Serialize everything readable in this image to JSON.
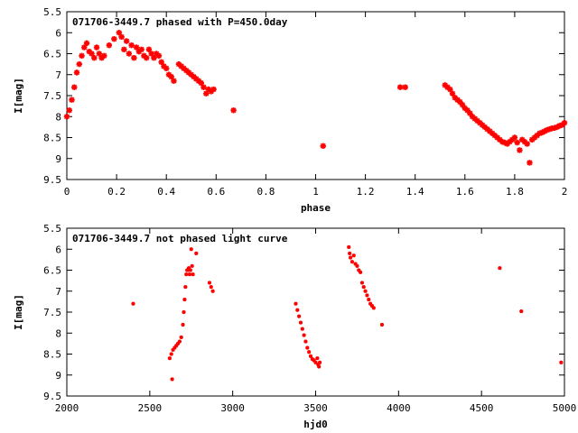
{
  "chart_data": [
    {
      "type": "scatter",
      "title": "071706-3449.7 phased with P=450.0day",
      "xlabel": "phase",
      "ylabel": "I[mag]",
      "xlim": [
        0,
        2
      ],
      "ylim": [
        5.5,
        9.5
      ],
      "y_inverted": true,
      "grid": false,
      "x_ticks": [
        "0",
        "0.2",
        "0.4",
        "0.6",
        "0.8",
        "1",
        "1.2",
        "1.4",
        "1.6",
        "1.8",
        "2"
      ],
      "y_ticks": [
        "5.5",
        "6",
        "6.5",
        "7",
        "7.5",
        "8",
        "8.5",
        "9",
        "9.5"
      ],
      "marker_color": "#ff0000",
      "series": [
        {
          "x": [
            0.0,
            0.01,
            0.02,
            0.03,
            0.04,
            0.05,
            0.06,
            0.07,
            0.08,
            0.09,
            0.1,
            0.11,
            0.12,
            0.13,
            0.14,
            0.15,
            0.17,
            0.19,
            0.21,
            0.22,
            0.23,
            0.24,
            0.25,
            0.26,
            0.27,
            0.28,
            0.29,
            0.3,
            0.31,
            0.32,
            0.33,
            0.34,
            0.35,
            0.36,
            0.37,
            0.38,
            0.39,
            0.4,
            0.41,
            0.42,
            0.43,
            0.45,
            0.46,
            0.47,
            0.48,
            0.49,
            0.5,
            0.51,
            0.52,
            0.53,
            0.54,
            0.55,
            0.56,
            0.57,
            0.58,
            0.59,
            0.67,
            1.03,
            1.34,
            1.36,
            1.52,
            1.53,
            1.54,
            1.55,
            1.56,
            1.57,
            1.58,
            1.59,
            1.6,
            1.61,
            1.62,
            1.63,
            1.64,
            1.65,
            1.66,
            1.67,
            1.68,
            1.69,
            1.7,
            1.71,
            1.72,
            1.73,
            1.74,
            1.75,
            1.76,
            1.77,
            1.78,
            1.79,
            1.8,
            1.81,
            1.82,
            1.83,
            1.84,
            1.85,
            1.86,
            1.87,
            1.88,
            1.89,
            1.9,
            1.91,
            1.92,
            1.93,
            1.94,
            1.95,
            1.96,
            1.97,
            1.98,
            1.99,
            2.0
          ],
          "y": [
            8.0,
            7.85,
            7.6,
            7.3,
            6.95,
            6.75,
            6.55,
            6.35,
            6.25,
            6.45,
            6.5,
            6.6,
            6.35,
            6.5,
            6.6,
            6.55,
            6.3,
            6.15,
            6.0,
            6.1,
            6.4,
            6.2,
            6.5,
            6.3,
            6.6,
            6.35,
            6.45,
            6.4,
            6.55,
            6.6,
            6.4,
            6.5,
            6.6,
            6.5,
            6.55,
            6.7,
            6.8,
            6.85,
            7.0,
            7.05,
            7.15,
            6.75,
            6.8,
            6.85,
            6.9,
            6.95,
            7.0,
            7.05,
            7.1,
            7.15,
            7.2,
            7.3,
            7.45,
            7.35,
            7.4,
            7.35,
            7.85,
            8.7,
            7.3,
            7.3,
            7.25,
            7.3,
            7.35,
            7.45,
            7.55,
            7.6,
            7.65,
            7.72,
            7.8,
            7.85,
            7.92,
            8.0,
            8.05,
            8.1,
            8.15,
            8.2,
            8.25,
            8.3,
            8.35,
            8.4,
            8.45,
            8.5,
            8.55,
            8.6,
            8.62,
            8.65,
            8.6,
            8.55,
            8.5,
            8.62,
            8.8,
            8.55,
            8.6,
            8.65,
            9.1,
            8.55,
            8.5,
            8.45,
            8.4,
            8.38,
            8.35,
            8.32,
            8.3,
            8.28,
            8.27,
            8.25,
            8.22,
            8.2,
            8.15
          ]
        }
      ]
    },
    {
      "type": "scatter",
      "title": "071706-3449.7 not phased light curve",
      "xlabel": "hjd0",
      "ylabel": "I[mag]",
      "xlim": [
        2000,
        5000
      ],
      "ylim": [
        5.5,
        9.5
      ],
      "y_inverted": true,
      "grid": false,
      "x_ticks": [
        "2000",
        "2500",
        "3000",
        "3500",
        "4000",
        "4500",
        "5000"
      ],
      "y_ticks": [
        "5.5",
        "6",
        "6.5",
        "7",
        "7.5",
        "8",
        "8.5",
        "9",
        "9.5"
      ],
      "marker_color": "#ff0000",
      "series": [
        {
          "x": [
            2400,
            2620,
            2630,
            2640,
            2650,
            2660,
            2670,
            2680,
            2690,
            2700,
            2705,
            2710,
            2715,
            2720,
            2725,
            2730,
            2735,
            2740,
            2745,
            2750,
            2755,
            2760,
            2780,
            2635,
            2860,
            2870,
            2880,
            3380,
            3390,
            3400,
            3410,
            3420,
            3430,
            3440,
            3450,
            3460,
            3470,
            3480,
            3490,
            3500,
            3510,
            3515,
            3520,
            3525,
            3700,
            3705,
            3710,
            3720,
            3730,
            3740,
            3750,
            3760,
            3770,
            3780,
            3790,
            3800,
            3810,
            3820,
            3830,
            3840,
            3850,
            3900,
            4610,
            4740,
            4980
          ],
          "y": [
            7.3,
            8.6,
            8.5,
            8.4,
            8.35,
            8.3,
            8.25,
            8.2,
            8.1,
            7.8,
            7.5,
            7.2,
            6.9,
            6.6,
            6.5,
            6.5,
            6.45,
            6.6,
            6.5,
            6.0,
            6.4,
            6.6,
            6.1,
            9.1,
            6.8,
            6.9,
            7.0,
            7.3,
            7.45,
            7.6,
            7.75,
            7.9,
            8.05,
            8.2,
            8.35,
            8.45,
            8.55,
            8.62,
            8.65,
            8.7,
            8.6,
            8.75,
            8.8,
            8.7,
            5.95,
            6.1,
            6.2,
            6.3,
            6.15,
            6.35,
            6.4,
            6.5,
            6.55,
            6.8,
            6.9,
            7.0,
            7.1,
            7.2,
            7.3,
            7.35,
            7.4,
            7.8,
            6.45,
            7.48,
            8.7
          ]
        }
      ]
    }
  ]
}
